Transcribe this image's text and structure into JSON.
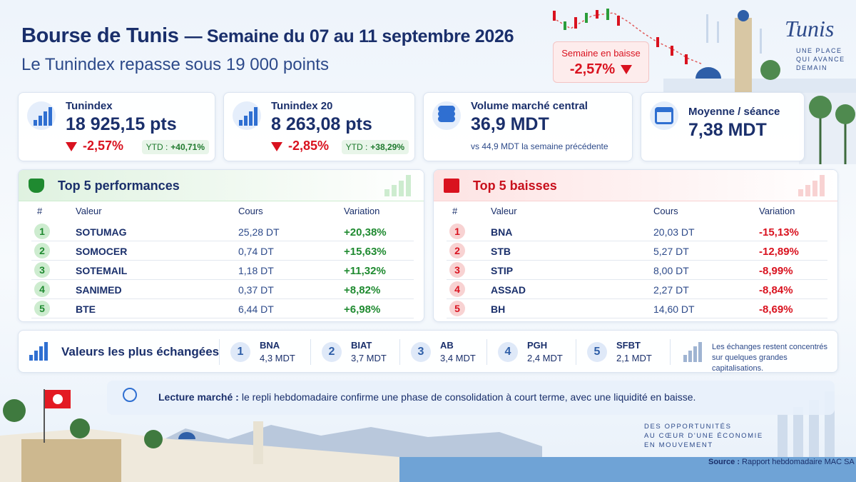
{
  "header": {
    "title": "Bourse de Tunis",
    "title_rest": "— Semaine du 07 au 11 septembre 2026",
    "subtitle": "Le Tunindex repasse sous 19 000 points",
    "badge_label": "Semaine en baisse",
    "badge_value": "-2,57%"
  },
  "brand": {
    "name": "Tunis",
    "tagline": [
      "UNE PLACE",
      "QUI AVANCE",
      "DEMAIN"
    ]
  },
  "kpis": [
    {
      "label": "Tunindex",
      "value": "18 925,15 pts",
      "change": "-2,57%",
      "ytd_label": "YTD :",
      "ytd": "+40,71%"
    },
    {
      "label": "Tunindex 20",
      "value": "8 263,08 pts",
      "change": "-2,85%",
      "ytd_label": "YTD :",
      "ytd": "+38,29%"
    },
    {
      "label": "Volume marché central",
      "value": "36,9 MDT",
      "note": "vs 44,9 MDT la semaine précédente"
    },
    {
      "label": "Moyenne / séance",
      "value": "7,38 MDT"
    }
  ],
  "top_gains": {
    "title": "Top 5 performances",
    "columns": [
      "#",
      "Valeur",
      "Cours",
      "Variation"
    ],
    "rows": [
      [
        "1",
        "SOTUMAG",
        "25,28 DT",
        "+20,38%"
      ],
      [
        "2",
        "SOMOCER",
        "0,74 DT",
        "+15,63%"
      ],
      [
        "3",
        "SOTEMAIL",
        "1,18 DT",
        "+11,32%"
      ],
      [
        "4",
        "SANIMED",
        "0,37 DT",
        "+8,82%"
      ],
      [
        "5",
        "BTE",
        "6,44 DT",
        "+6,98%"
      ]
    ]
  },
  "top_losses": {
    "title": "Top 5 baisses",
    "columns": [
      "#",
      "Valeur",
      "Cours",
      "Variation"
    ],
    "rows": [
      [
        "1",
        "BNA",
        "20,03 DT",
        "-15,13%"
      ],
      [
        "2",
        "STB",
        "5,27 DT",
        "-12,89%"
      ],
      [
        "3",
        "STIP",
        "8,00 DT",
        "-8,99%"
      ],
      [
        "4",
        "ASSAD",
        "2,27 DT",
        "-8,84%"
      ],
      [
        "5",
        "BH",
        "14,60 DT",
        "-8,69%"
      ]
    ]
  },
  "most_traded": {
    "title": "Valeurs les plus échangées",
    "items": [
      {
        "rank": "1",
        "name": "BNA",
        "value": "4,3 MDT"
      },
      {
        "rank": "2",
        "name": "BIAT",
        "value": "3,7 MDT"
      },
      {
        "rank": "3",
        "name": "AB",
        "value": "3,4 MDT"
      },
      {
        "rank": "4",
        "name": "PGH",
        "value": "2,4 MDT"
      },
      {
        "rank": "5",
        "name": "SFBT",
        "value": "2,1 MDT"
      }
    ],
    "note": "Les échanges restent concentrés sur quelques grandes capitalisations."
  },
  "reading": {
    "label": "Lecture marché :",
    "text": "le repli hebdomadaire confirme une phase de consolidation à court terme, avec une liquidité en baisse."
  },
  "footer": {
    "slogan": [
      "DES OPPORTUNITÉS",
      "AU CŒUR D'UNE ÉCONOMIE",
      "EN MOUVEMENT"
    ],
    "source_label": "Source :",
    "source": "Rapport hebdomadaire MAC SA"
  }
}
